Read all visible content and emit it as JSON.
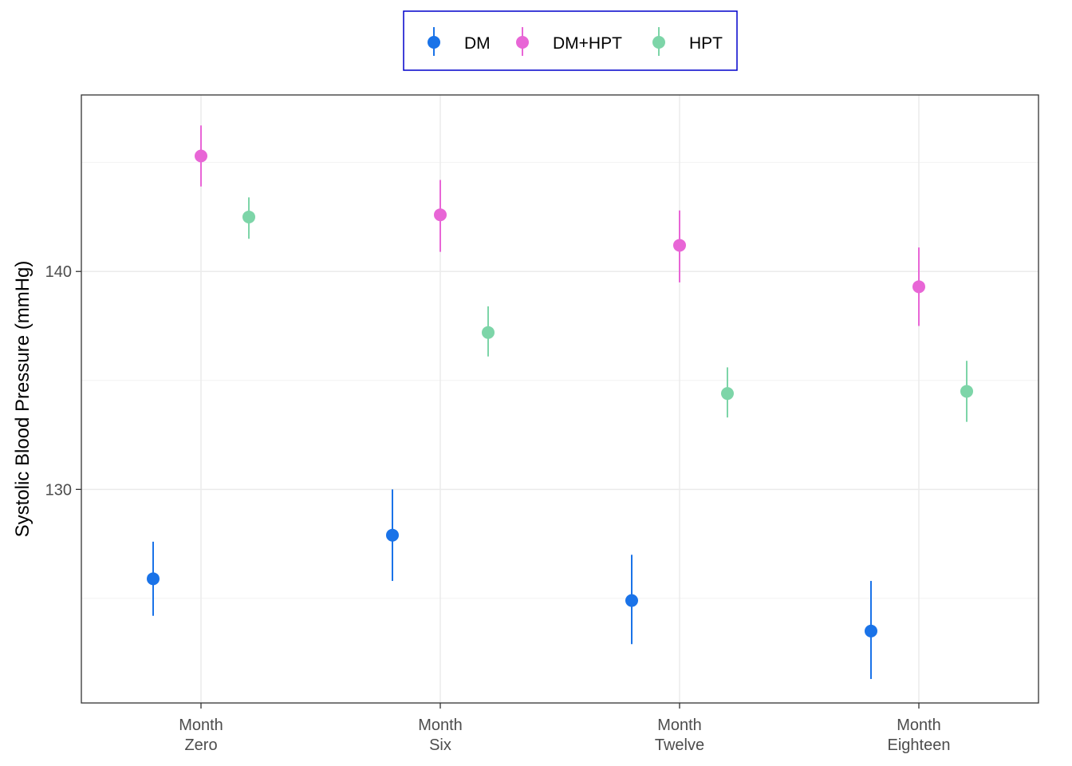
{
  "chart_data": {
    "type": "scatter",
    "title": "",
    "xlabel": "",
    "ylabel": "Systolic Blood Pressure (mmHg)",
    "categories": [
      [
        "Month",
        "Zero"
      ],
      [
        "Month",
        "Six"
      ],
      [
        "Month",
        "Twelve"
      ],
      [
        "Month",
        "Eighteen"
      ]
    ],
    "ylim": [
      120.2,
      148.1
    ],
    "yticks": [
      130,
      140
    ],
    "grid": true,
    "legend_position": "top",
    "series": [
      {
        "name": "DM",
        "color": "#1a73e8",
        "values": [
          125.9,
          127.9,
          124.9,
          123.5
        ],
        "lower": [
          124.2,
          125.8,
          122.9,
          121.3
        ],
        "upper": [
          127.6,
          130.0,
          127.0,
          125.8
        ]
      },
      {
        "name": "DM+HPT",
        "color": "#e866d6",
        "values": [
          145.3,
          142.6,
          141.2,
          139.3
        ],
        "lower": [
          143.9,
          140.9,
          139.5,
          137.5
        ],
        "upper": [
          146.7,
          144.2,
          142.8,
          141.1
        ]
      },
      {
        "name": "HPT",
        "color": "#7dd5a8",
        "values": [
          142.5,
          137.2,
          134.4,
          134.5
        ],
        "lower": [
          141.5,
          136.1,
          133.3,
          133.1
        ],
        "upper": [
          143.4,
          138.4,
          135.6,
          135.9
        ]
      }
    ]
  }
}
